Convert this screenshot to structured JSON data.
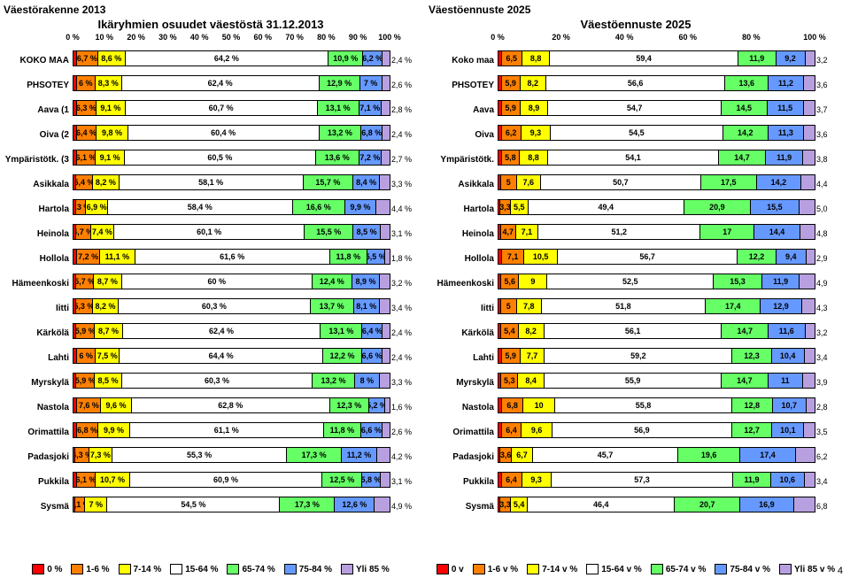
{
  "colors": {
    "c0": "#ff0000",
    "c1": "#ff8000",
    "c2": "#ffff00",
    "c3": "#ffffff",
    "c4": "#66ff66",
    "c5": "#6699ff",
    "c6": "#b8a0e0",
    "txt": "#000000"
  },
  "page_number": "4",
  "panels": [
    {
      "main_title": "Väestörakenne 2013",
      "sub_title": "Ikäryhmien osuudet väestöstä 31.12.2013",
      "axis_ticks": [
        "0 %",
        "10 %",
        "20 %",
        "30 %",
        "40 %",
        "50 %",
        "60 %",
        "70 %",
        "80 %",
        "90 %",
        "100 %"
      ],
      "value_suffix": " %",
      "legend": [
        "0 %",
        "1-6 %",
        "7-14 %",
        "15-64 %",
        "65-74 %",
        "75-84 %",
        "Yli 85 %"
      ],
      "rows": [
        {
          "label": "KOKO MAA",
          "v": [
            1.1,
            6.7,
            8.6,
            64.2,
            10.9,
            6.2,
            2.4
          ],
          "end": "2,4 %"
        },
        {
          "label": "PHSOTEY",
          "v": [
            1.0,
            6.0,
            8.3,
            62.4,
            12.9,
            7.0,
            2.6
          ],
          "end": "2,6 %"
        },
        {
          "label": "Aava (1",
          "v": [
            1.0,
            6.3,
            9.1,
            60.7,
            13.1,
            7.1,
            2.8
          ],
          "end": "2,8 %"
        },
        {
          "label": "Oiva (2",
          "v": [
            1.0,
            6.4,
            9.8,
            60.4,
            13.2,
            6.8,
            2.4
          ],
          "end": "2,4 %"
        },
        {
          "label": "Ympäristötk. (3",
          "v": [
            1.0,
            6.1,
            9.1,
            60.5,
            13.6,
            7.2,
            2.7
          ],
          "end": "2,7 %"
        },
        {
          "label": "Asikkala",
          "v": [
            0.8,
            5.4,
            8.2,
            58.1,
            15.7,
            8.4,
            3.3
          ],
          "end": "3,3 %"
        },
        {
          "label": "Hartola",
          "v": [
            0.7,
            3.3,
            6.9,
            58.4,
            16.6,
            9.9,
            4.4
          ],
          "end": "4,4 %"
        },
        {
          "label": "Heinola",
          "v": [
            0.8,
            4.7,
            7.4,
            60.1,
            15.5,
            8.5,
            3.1
          ],
          "end": "3,1 %"
        },
        {
          "label": "Hollola",
          "v": [
            1.2,
            7.2,
            11.1,
            61.6,
            11.8,
            5.5,
            1.8
          ],
          "end": "1,8 %"
        },
        {
          "label": "Hämeenkoski",
          "v": [
            0.8,
            5.7,
            8.7,
            60.0,
            12.4,
            8.9,
            3.2
          ],
          "end": "3,2 %"
        },
        {
          "label": "Iitti",
          "v": [
            0.8,
            5.3,
            8.2,
            60.3,
            13.7,
            8.1,
            3.4
          ],
          "end": "3,4 %"
        },
        {
          "label": "Kärkölä",
          "v": [
            0.9,
            5.9,
            8.7,
            62.4,
            13.1,
            6.4,
            2.4
          ],
          "end": "2,4 %"
        },
        {
          "label": "Lahti",
          "v": [
            1.1,
            6.0,
            7.5,
            64.4,
            12.2,
            6.6,
            2.4
          ],
          "end": "2,4 %"
        },
        {
          "label": "Myrskylä",
          "v": [
            0.9,
            5.9,
            8.5,
            60.3,
            13.2,
            8.0,
            3.3
          ],
          "end": "3,3 %"
        },
        {
          "label": "Nastola",
          "v": [
            1.2,
            7.6,
            9.6,
            62.8,
            12.3,
            5.2,
            1.6
          ],
          "end": "1,6 %"
        },
        {
          "label": "Orimattila",
          "v": [
            1.1,
            6.8,
            9.9,
            61.1,
            11.8,
            6.6,
            2.6
          ],
          "end": "2,6 %"
        },
        {
          "label": "Padasjoki",
          "v": [
            0.7,
            4.3,
            7.3,
            55.3,
            17.3,
            11.2,
            4.2
          ],
          "end": "4,2 %"
        },
        {
          "label": "Pukkila",
          "v": [
            1.0,
            6.1,
            10.7,
            60.9,
            12.5,
            5.8,
            3.1
          ],
          "end": "3,1 %"
        },
        {
          "label": "Sysmä",
          "v": [
            0.6,
            3.1,
            7.0,
            54.5,
            17.3,
            12.6,
            4.9
          ],
          "end": "4,9 %"
        }
      ]
    },
    {
      "main_title": "Väestöennuste 2025",
      "sub_title": "Väestöennuste 2025",
      "axis_ticks": [
        "0 %",
        "20 %",
        "40 %",
        "60 %",
        "80 %",
        "100 %"
      ],
      "value_suffix": "",
      "legend": [
        "0 v",
        "1-6 v %",
        "7-14 v %",
        "15-64 v %",
        "65-74 v %",
        "75-84 v %",
        "Yli 85 v %"
      ],
      "rows": [
        {
          "label": "Koko maa",
          "v": [
            1.0,
            6.5,
            8.8,
            59.4,
            11.9,
            9.2,
            3.2
          ],
          "end": "3,2"
        },
        {
          "label": "PHSOTEY",
          "v": [
            1.0,
            5.9,
            8.2,
            56.6,
            13.6,
            11.2,
            3.6
          ],
          "end": "3,6"
        },
        {
          "label": "Aava",
          "v": [
            1.0,
            5.9,
            8.9,
            54.7,
            14.5,
            11.5,
            3.7
          ],
          "end": "3,7"
        },
        {
          "label": "Oiva",
          "v": [
            1.0,
            6.2,
            9.3,
            54.5,
            14.2,
            11.3,
            3.6
          ],
          "end": "3,6"
        },
        {
          "label": "Ympäristötk.",
          "v": [
            1.0,
            5.8,
            8.8,
            54.1,
            14.7,
            11.9,
            3.8
          ],
          "end": "3,8"
        },
        {
          "label": "Asikkala",
          "v": [
            0.8,
            5.0,
            7.6,
            50.7,
            17.5,
            14.2,
            4.4
          ],
          "end": "4,4"
        },
        {
          "label": "Hartola",
          "v": [
            0.6,
            3.3,
            5.5,
            49.4,
            20.9,
            15.5,
            5.0
          ],
          "end": "5,0"
        },
        {
          "label": "Heinola",
          "v": [
            0.8,
            4.7,
            7.1,
            51.2,
            17.0,
            14.4,
            4.8
          ],
          "end": "4,8"
        },
        {
          "label": "Hollola",
          "v": [
            1.1,
            7.1,
            10.5,
            56.7,
            12.2,
            9.4,
            2.9
          ],
          "end": "2,9"
        },
        {
          "label": "Hämeenkoski",
          "v": [
            0.9,
            5.6,
            9.0,
            52.5,
            15.3,
            11.9,
            4.9
          ],
          "end": "4,9"
        },
        {
          "label": "Iitti",
          "v": [
            0.8,
            5.0,
            7.8,
            51.8,
            17.4,
            12.9,
            4.3
          ],
          "end": "4,3"
        },
        {
          "label": "Kärkölä",
          "v": [
            0.9,
            5.4,
            8.2,
            56.1,
            14.7,
            11.6,
            3.2
          ],
          "end": "3,2"
        },
        {
          "label": "Lahti",
          "v": [
            1.0,
            5.9,
            7.7,
            59.2,
            12.3,
            10.4,
            3.4
          ],
          "end": "3,4"
        },
        {
          "label": "Myrskylä",
          "v": [
            0.9,
            5.3,
            8.4,
            55.9,
            14.7,
            11.0,
            3.9
          ],
          "end": "3,9"
        },
        {
          "label": "Nastola",
          "v": [
            1.1,
            6.8,
            10.0,
            55.8,
            12.8,
            10.7,
            2.8
          ],
          "end": "2,8"
        },
        {
          "label": "Orimattila",
          "v": [
            1.0,
            6.4,
            9.6,
            56.9,
            12.7,
            10.1,
            3.5
          ],
          "end": "3,5"
        },
        {
          "label": "Padasjoki",
          "v": [
            0.6,
            3.6,
            6.7,
            45.7,
            19.6,
            17.4,
            6.2
          ],
          "end": "6,2"
        },
        {
          "label": "Pukkila",
          "v": [
            1.0,
            6.4,
            9.3,
            57.3,
            11.9,
            10.6,
            3.4
          ],
          "end": "3,4"
        },
        {
          "label": "Sysmä",
          "v": [
            0.6,
            3.3,
            5.4,
            46.4,
            20.7,
            16.9,
            6.8
          ],
          "end": "6,8"
        }
      ]
    }
  ]
}
